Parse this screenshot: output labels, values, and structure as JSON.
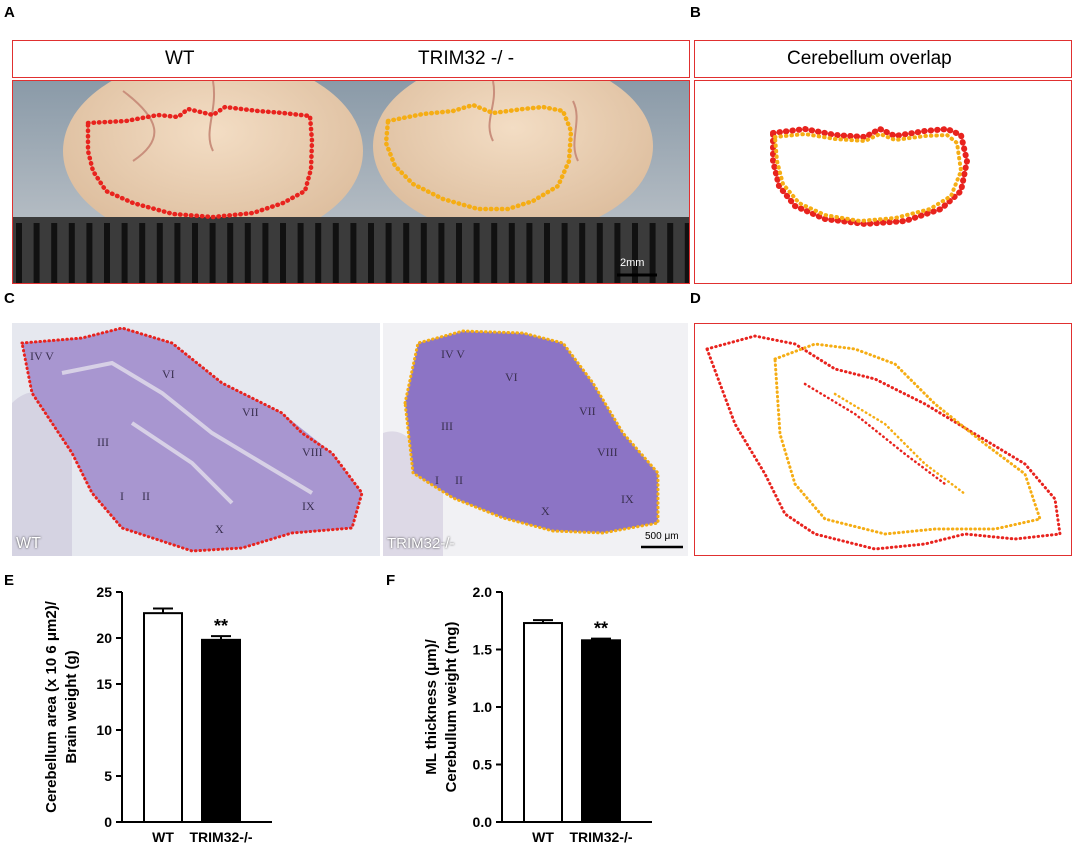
{
  "panel_labels": [
    "A",
    "B",
    "C",
    "D",
    "E",
    "F"
  ],
  "panel_a": {
    "header_left": "WT",
    "header_right": "TRIM32 -/ -",
    "scale_bar": "2mm"
  },
  "panel_b": {
    "header": "Cerebellum overlap"
  },
  "panel_c": {
    "wt_label": "WT",
    "ko_label": "TRIM32-/-",
    "scale_bar": "500 μm",
    "lobules": [
      "IV",
      "V",
      "VI",
      "VII",
      "VIII",
      "III",
      "I",
      "II",
      "IX",
      "X"
    ]
  },
  "colors": {
    "wt_outline": "#e8231e",
    "ko_outline": "#f5ad14",
    "frame": "#e03030",
    "tissue": "#8f78c4"
  },
  "chart_data": [
    {
      "type": "bar",
      "panel": "E",
      "categories": [
        "WT",
        "TRIM32-/-"
      ],
      "values": [
        22.7,
        19.8
      ],
      "errors": [
        0.5,
        0.4
      ],
      "ylabel_line1": "Cerebellum area (x 10 6 μm2)/",
      "ylabel_line2": "Brain weight (g)",
      "ylim": [
        0,
        25
      ],
      "yticks": [
        "0",
        "5",
        "10",
        "15",
        "20",
        "25"
      ],
      "annotation": "**",
      "bar_fills": [
        "#ffffff",
        "#000000"
      ]
    },
    {
      "type": "bar",
      "panel": "F",
      "categories": [
        "WT",
        "TRIM32-/-"
      ],
      "values": [
        1.73,
        1.58
      ],
      "errors": [
        0.025,
        0.015
      ],
      "ylabel_line1": "ML thickness (μm)/",
      "ylabel_line2": "Cerebullum weight (mg)",
      "ylim": [
        0,
        2.0
      ],
      "yticks": [
        "0.0",
        "0.5",
        "1.0",
        "1.5",
        "2.0"
      ],
      "annotation": "**",
      "bar_fills": [
        "#ffffff",
        "#000000"
      ]
    }
  ]
}
